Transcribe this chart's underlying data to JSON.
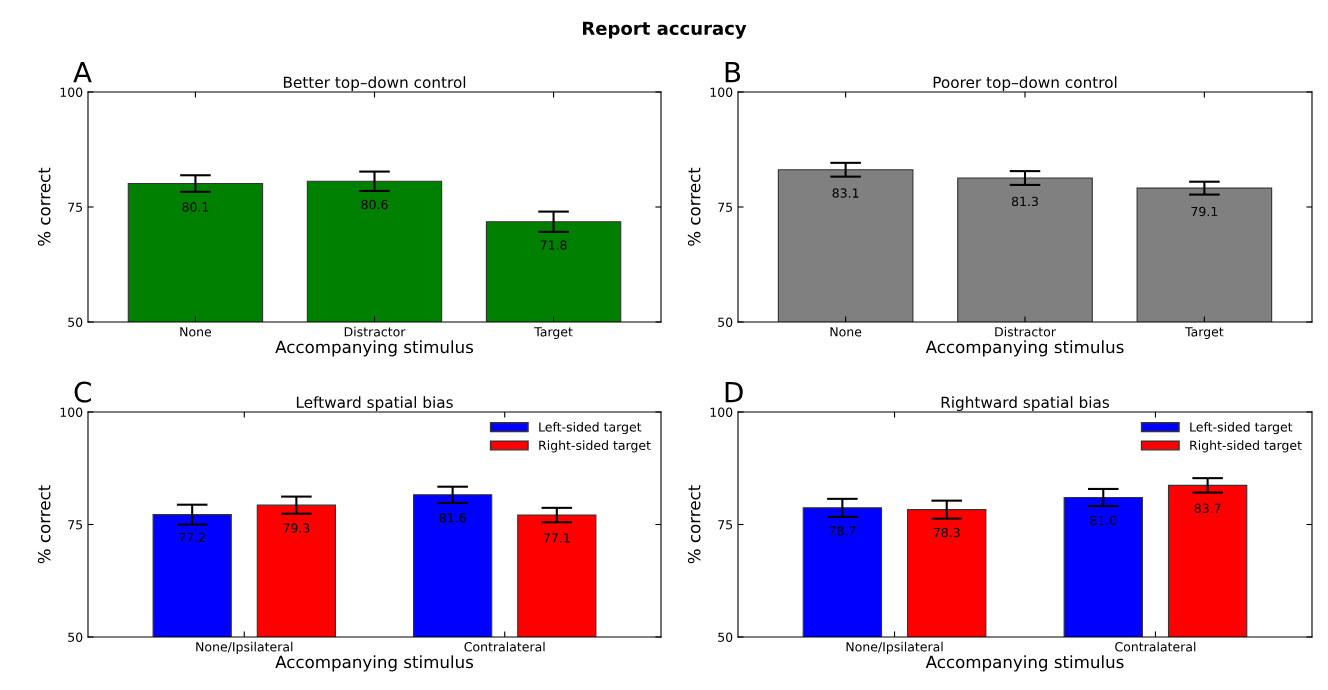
{
  "chart_data": [
    {
      "type": "bar",
      "title": "Better top–down control",
      "xlabel": "Accompanying stimulus",
      "ylabel": "% correct",
      "annotations": [
        "Report accuracy",
        "A"
      ],
      "categories": [
        "None",
        "Distractor",
        "Target"
      ],
      "series": [
        {
          "color": "#008000",
          "values": [
            80.1,
            80.6,
            71.8
          ],
          "value_labels": [
            "80.1",
            "80.6",
            "71.8"
          ],
          "errors": [
            1.8,
            2.1,
            2.2
          ]
        }
      ],
      "ylim": [
        50,
        100
      ],
      "yticks": [
        50,
        75,
        100
      ]
    },
    {
      "type": "bar",
      "title": "Poorer top–down control",
      "xlabel": "Accompanying stimulus",
      "ylabel": "% correct",
      "annotations": [
        "B"
      ],
      "categories": [
        "None",
        "Distractor",
        "Target"
      ],
      "series": [
        {
          "color": "#808080",
          "values": [
            83.1,
            81.3,
            79.1
          ],
          "value_labels": [
            "83.1",
            "81.3",
            "79.1"
          ],
          "errors": [
            1.5,
            1.5,
            1.4
          ]
        }
      ],
      "ylim": [
        50,
        100
      ],
      "yticks": [
        50,
        75,
        100
      ]
    },
    {
      "type": "bar",
      "title": "Leftward spatial bias",
      "xlabel": "Accompanying stimulus",
      "ylabel": "% correct",
      "annotations": [
        "C"
      ],
      "categories": [
        "None/Ipsilateral",
        "Contralateral"
      ],
      "series": [
        {
          "name": "Left-sided target",
          "color": "#0000ff",
          "values": [
            77.2,
            81.6
          ],
          "value_labels": [
            "77.2",
            "81.6"
          ],
          "errors": [
            2.2,
            1.8
          ]
        },
        {
          "name": "Right-sided target",
          "color": "#ff0000",
          "values": [
            79.3,
            77.1
          ],
          "value_labels": [
            "79.3",
            "77.1"
          ],
          "errors": [
            1.9,
            1.6
          ]
        }
      ],
      "ylim": [
        50,
        100
      ],
      "yticks": [
        50,
        75,
        100
      ],
      "legend": "top right"
    },
    {
      "type": "bar",
      "title": "Rightward spatial bias",
      "xlabel": "Accompanying stimulus",
      "ylabel": "% correct",
      "annotations": [
        "D"
      ],
      "categories": [
        "None/Ipsilateral",
        "Contralateral"
      ],
      "series": [
        {
          "name": "Left-sided target",
          "color": "#0000ff",
          "values": [
            78.7,
            81.0
          ],
          "value_labels": [
            "78.7",
            "81.0"
          ],
          "errors": [
            2.0,
            1.9
          ]
        },
        {
          "name": "Right-sided target",
          "color": "#ff0000",
          "values": [
            78.3,
            83.7
          ],
          "value_labels": [
            "78.3",
            "83.7"
          ],
          "errors": [
            2.0,
            1.6
          ]
        }
      ],
      "ylim": [
        50,
        100
      ],
      "yticks": [
        50,
        75,
        100
      ],
      "legend": "top right"
    }
  ]
}
